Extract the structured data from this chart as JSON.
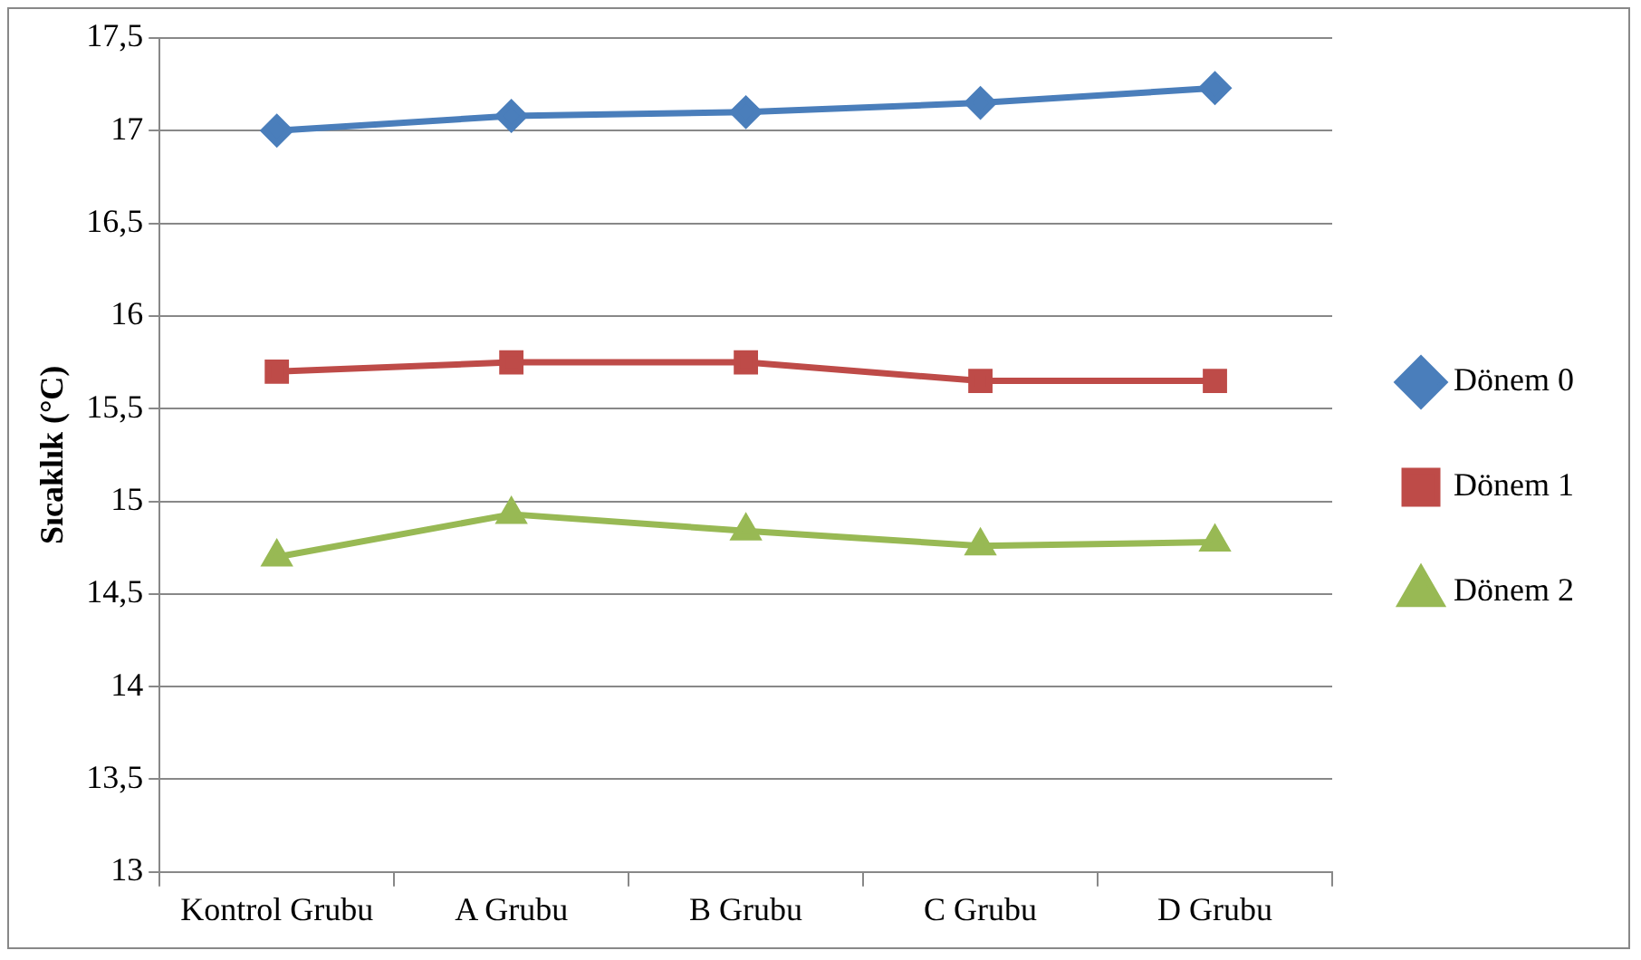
{
  "chart_data": {
    "type": "line",
    "ylabel": "Sıcaklık (°C)",
    "categories": [
      "Kontrol Grubu",
      "A Grubu",
      "B Grubu",
      "C Grubu",
      "D Grubu"
    ],
    "series": [
      {
        "name": "Dönem 0",
        "color": "#4a7ebb",
        "marker": "diamond",
        "values": [
          17.0,
          17.08,
          17.1,
          17.15,
          17.23
        ]
      },
      {
        "name": "Dönem 1",
        "color": "#be4b48",
        "marker": "square",
        "values": [
          15.7,
          15.75,
          15.75,
          15.65,
          15.65
        ]
      },
      {
        "name": "Dönem 2",
        "color": "#98b954",
        "marker": "triangle",
        "values": [
          14.7,
          14.93,
          14.84,
          14.76,
          14.78
        ]
      }
    ],
    "ylim": [
      13,
      17.5
    ],
    "yticks": [
      {
        "value": 13,
        "label": "13"
      },
      {
        "value": 13.5,
        "label": "13,5"
      },
      {
        "value": 14,
        "label": "14"
      },
      {
        "value": 14.5,
        "label": "14,5"
      },
      {
        "value": 15,
        "label": "15"
      },
      {
        "value": 15.5,
        "label": "15,5"
      },
      {
        "value": 16,
        "label": "16"
      },
      {
        "value": 16.5,
        "label": "16,5"
      },
      {
        "value": 17,
        "label": "17"
      },
      {
        "value": 17.5,
        "label": "17,5"
      }
    ],
    "grid": "y",
    "legend": "right",
    "line_style": "solid"
  }
}
